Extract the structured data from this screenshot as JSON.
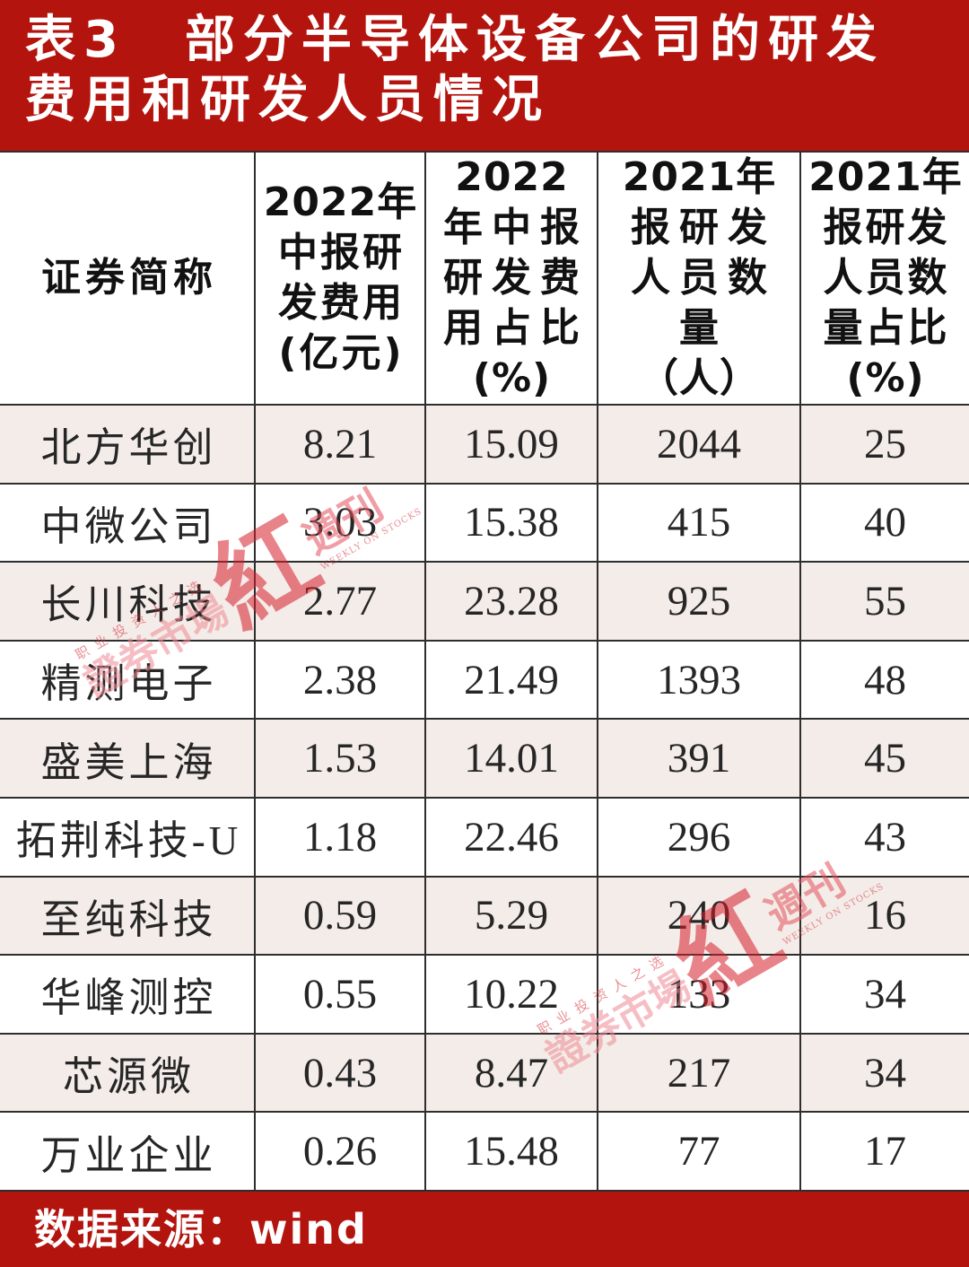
{
  "chart_data": {
    "type": "table",
    "title": [
      "表3　部分半导体设备公司的研发",
      "费用和研发人员情况"
    ],
    "columns": [
      [
        "证券简称"
      ],
      [
        "2022年",
        "中报研",
        "发费用",
        "(亿元)"
      ],
      [
        "2022",
        "年中报",
        "研发费",
        "用占比",
        "(%)"
      ],
      [
        "2021年",
        "报研发",
        "人员数",
        "量",
        "（人）"
      ],
      [
        "2021年",
        "报研发",
        "人员数",
        "量占比",
        "(%)"
      ]
    ],
    "rows": [
      {
        "name": "北方华创",
        "values": [
          8.21,
          15.09,
          2044,
          25
        ]
      },
      {
        "name": "中微公司",
        "values": [
          3.03,
          15.38,
          415,
          40
        ]
      },
      {
        "name": "长川科技",
        "values": [
          2.77,
          23.28,
          925,
          55
        ]
      },
      {
        "name": "精测电子",
        "values": [
          2.38,
          21.49,
          1393,
          48
        ]
      },
      {
        "name": "盛美上海",
        "values": [
          1.53,
          14.01,
          391,
          45
        ]
      },
      {
        "name": "拓荆科技-U",
        "values": [
          1.18,
          22.46,
          296,
          43
        ]
      },
      {
        "name": "至纯科技",
        "values": [
          0.59,
          5.29,
          240,
          16
        ]
      },
      {
        "name": "华峰测控",
        "values": [
          0.55,
          10.22,
          133,
          34
        ]
      },
      {
        "name": "芯源微",
        "values": [
          0.43,
          8.47,
          217,
          34
        ]
      },
      {
        "name": "万业企业",
        "values": [
          0.26,
          15.48,
          77,
          17
        ]
      }
    ],
    "source": "数据来源：wind"
  },
  "watermark": {
    "slogan": "职业投资人之选",
    "brand": "證券市場",
    "logo": "紅",
    "suffix": "週刊",
    "english": "WEEKLY ON STOCKS"
  },
  "colors": {
    "banner": "#b4140e",
    "row_shade": "#f3ece8",
    "border": "#2e2e2e",
    "wm_logo": "#d61e2c"
  }
}
